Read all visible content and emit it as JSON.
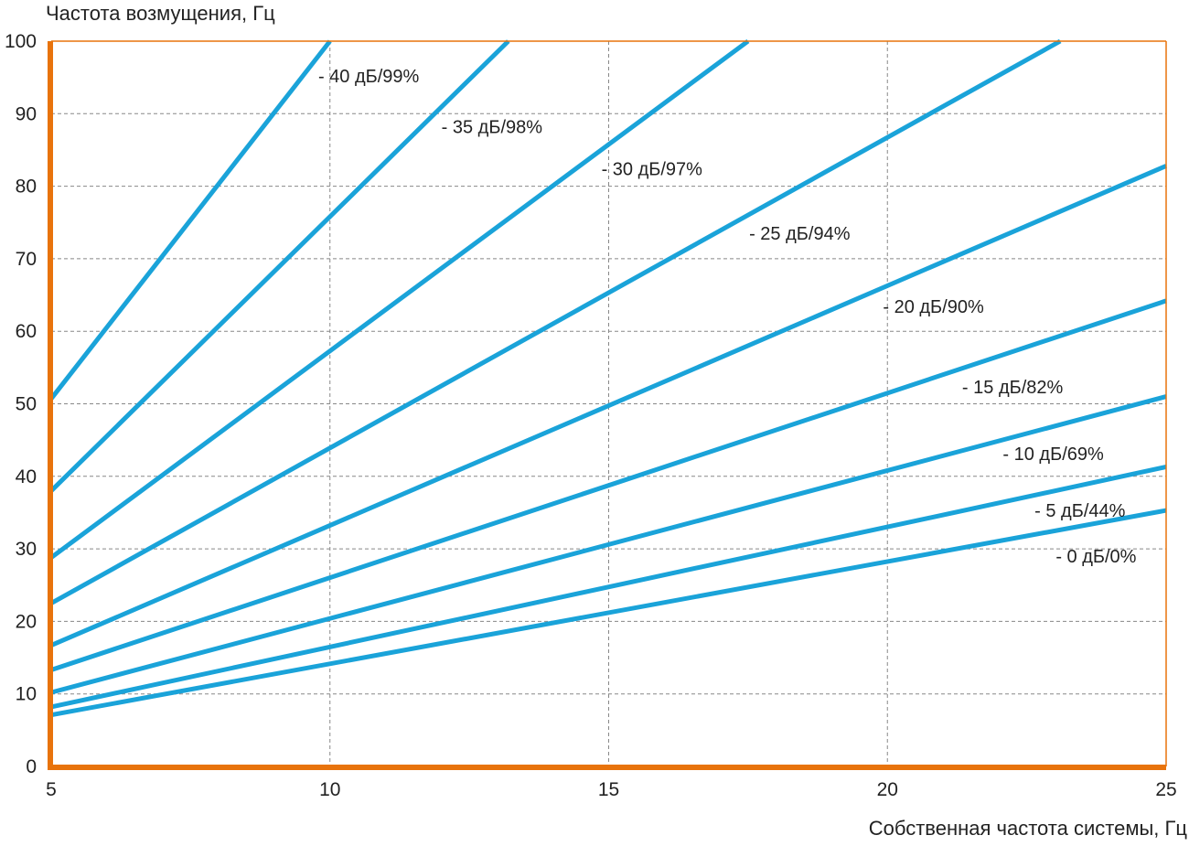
{
  "chart_data": {
    "type": "line",
    "ylabel": "Частота возмущения, Гц",
    "xlabel": "Собственная частота системы, Гц",
    "xlim": [
      5,
      25
    ],
    "ylim": [
      0,
      100
    ],
    "xticks": [
      "5",
      "10",
      "15",
      "20",
      "25"
    ],
    "yticks": [
      "0",
      "10",
      "20",
      "30",
      "40",
      "50",
      "60",
      "70",
      "80",
      "90",
      "100"
    ],
    "grid": true,
    "colors": {
      "axis": "#e8730c",
      "line": "#1aa3d9",
      "grid": "#888888"
    },
    "series": [
      {
        "name": "- 0 дБ/0%",
        "points": [
          [
            5,
            7.1
          ],
          [
            25,
            35.3
          ]
        ],
        "label_at": [
          23.02,
          28.8
        ]
      },
      {
        "name": "- 5 дБ/44%",
        "points": [
          [
            5,
            8.2
          ],
          [
            25,
            41.3
          ]
        ],
        "label_at": [
          22.64,
          35.1
        ]
      },
      {
        "name": "- 10 дБ/69%",
        "points": [
          [
            5,
            10.2
          ],
          [
            25,
            51.0
          ]
        ],
        "label_at": [
          22.07,
          42.9
        ]
      },
      {
        "name": "- 15 дБ/82%",
        "points": [
          [
            5,
            13.3
          ],
          [
            25,
            64.2
          ]
        ],
        "label_at": [
          21.34,
          52.1
        ]
      },
      {
        "name": "- 20 дБ/90%",
        "points": [
          [
            5,
            16.7
          ],
          [
            25,
            82.8
          ]
        ],
        "label_at": [
          19.92,
          63.2
        ]
      },
      {
        "name": "- 25 дБ/94%",
        "points": [
          [
            5,
            22.5
          ],
          [
            23.1,
            100
          ]
        ],
        "label_at": [
          17.52,
          73.3
        ]
      },
      {
        "name": "- 30 дБ/97%",
        "points": [
          [
            5,
            28.8
          ],
          [
            17.5,
            100
          ]
        ],
        "label_at": [
          14.87,
          82.2
        ]
      },
      {
        "name": "- 35 дБ/98%",
        "points": [
          [
            5,
            38.0
          ],
          [
            13.2,
            100
          ]
        ],
        "label_at": [
          12.0,
          88.0
        ]
      },
      {
        "name": "- 40 дБ/99%",
        "points": [
          [
            5,
            50.7
          ],
          [
            10.0,
            100
          ]
        ],
        "label_at": [
          9.79,
          95.0
        ]
      }
    ]
  }
}
